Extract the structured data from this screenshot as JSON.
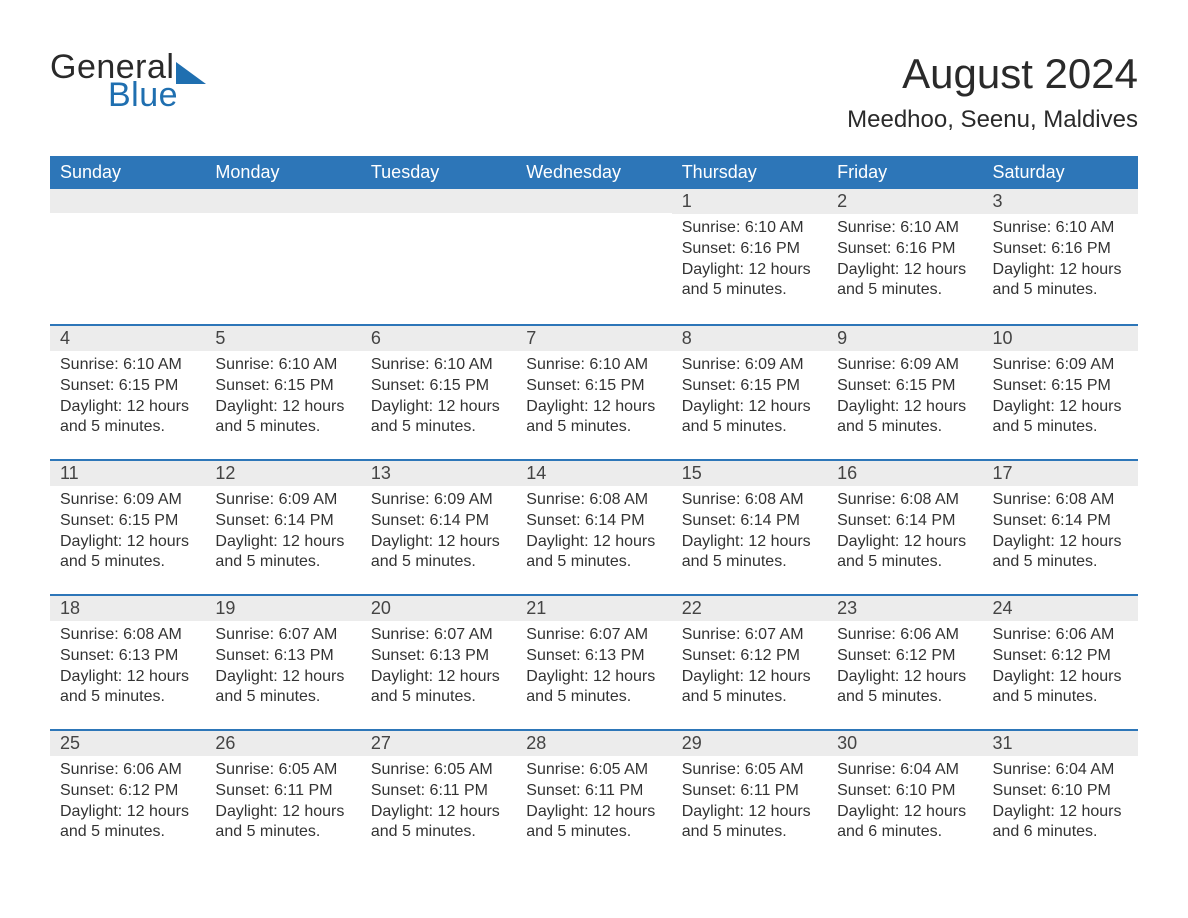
{
  "logo": {
    "part1": "General",
    "part2": "Blue",
    "color1": "#2a2a2a",
    "color2": "#1f6fb0"
  },
  "title": "August 2024",
  "location": "Meedhoo, Seenu, Maldives",
  "colors": {
    "header_bg": "#2d76b8",
    "header_text": "#ffffff",
    "daynum_bg": "#ececec",
    "row_divider": "#2d76b8",
    "body_text": "#333333",
    "page_bg": "#ffffff"
  },
  "weekdays": [
    "Sunday",
    "Monday",
    "Tuesday",
    "Wednesday",
    "Thursday",
    "Friday",
    "Saturday"
  ],
  "weeks": [
    [
      null,
      null,
      null,
      null,
      {
        "n": "1",
        "sunrise": "Sunrise: 6:10 AM",
        "sunset": "Sunset: 6:16 PM",
        "daylight": "Daylight: 12 hours and 5 minutes."
      },
      {
        "n": "2",
        "sunrise": "Sunrise: 6:10 AM",
        "sunset": "Sunset: 6:16 PM",
        "daylight": "Daylight: 12 hours and 5 minutes."
      },
      {
        "n": "3",
        "sunrise": "Sunrise: 6:10 AM",
        "sunset": "Sunset: 6:16 PM",
        "daylight": "Daylight: 12 hours and 5 minutes."
      }
    ],
    [
      {
        "n": "4",
        "sunrise": "Sunrise: 6:10 AM",
        "sunset": "Sunset: 6:15 PM",
        "daylight": "Daylight: 12 hours and 5 minutes."
      },
      {
        "n": "5",
        "sunrise": "Sunrise: 6:10 AM",
        "sunset": "Sunset: 6:15 PM",
        "daylight": "Daylight: 12 hours and 5 minutes."
      },
      {
        "n": "6",
        "sunrise": "Sunrise: 6:10 AM",
        "sunset": "Sunset: 6:15 PM",
        "daylight": "Daylight: 12 hours and 5 minutes."
      },
      {
        "n": "7",
        "sunrise": "Sunrise: 6:10 AM",
        "sunset": "Sunset: 6:15 PM",
        "daylight": "Daylight: 12 hours and 5 minutes."
      },
      {
        "n": "8",
        "sunrise": "Sunrise: 6:09 AM",
        "sunset": "Sunset: 6:15 PM",
        "daylight": "Daylight: 12 hours and 5 minutes."
      },
      {
        "n": "9",
        "sunrise": "Sunrise: 6:09 AM",
        "sunset": "Sunset: 6:15 PM",
        "daylight": "Daylight: 12 hours and 5 minutes."
      },
      {
        "n": "10",
        "sunrise": "Sunrise: 6:09 AM",
        "sunset": "Sunset: 6:15 PM",
        "daylight": "Daylight: 12 hours and 5 minutes."
      }
    ],
    [
      {
        "n": "11",
        "sunrise": "Sunrise: 6:09 AM",
        "sunset": "Sunset: 6:15 PM",
        "daylight": "Daylight: 12 hours and 5 minutes."
      },
      {
        "n": "12",
        "sunrise": "Sunrise: 6:09 AM",
        "sunset": "Sunset: 6:14 PM",
        "daylight": "Daylight: 12 hours and 5 minutes."
      },
      {
        "n": "13",
        "sunrise": "Sunrise: 6:09 AM",
        "sunset": "Sunset: 6:14 PM",
        "daylight": "Daylight: 12 hours and 5 minutes."
      },
      {
        "n": "14",
        "sunrise": "Sunrise: 6:08 AM",
        "sunset": "Sunset: 6:14 PM",
        "daylight": "Daylight: 12 hours and 5 minutes."
      },
      {
        "n": "15",
        "sunrise": "Sunrise: 6:08 AM",
        "sunset": "Sunset: 6:14 PM",
        "daylight": "Daylight: 12 hours and 5 minutes."
      },
      {
        "n": "16",
        "sunrise": "Sunrise: 6:08 AM",
        "sunset": "Sunset: 6:14 PM",
        "daylight": "Daylight: 12 hours and 5 minutes."
      },
      {
        "n": "17",
        "sunrise": "Sunrise: 6:08 AM",
        "sunset": "Sunset: 6:14 PM",
        "daylight": "Daylight: 12 hours and 5 minutes."
      }
    ],
    [
      {
        "n": "18",
        "sunrise": "Sunrise: 6:08 AM",
        "sunset": "Sunset: 6:13 PM",
        "daylight": "Daylight: 12 hours and 5 minutes."
      },
      {
        "n": "19",
        "sunrise": "Sunrise: 6:07 AM",
        "sunset": "Sunset: 6:13 PM",
        "daylight": "Daylight: 12 hours and 5 minutes."
      },
      {
        "n": "20",
        "sunrise": "Sunrise: 6:07 AM",
        "sunset": "Sunset: 6:13 PM",
        "daylight": "Daylight: 12 hours and 5 minutes."
      },
      {
        "n": "21",
        "sunrise": "Sunrise: 6:07 AM",
        "sunset": "Sunset: 6:13 PM",
        "daylight": "Daylight: 12 hours and 5 minutes."
      },
      {
        "n": "22",
        "sunrise": "Sunrise: 6:07 AM",
        "sunset": "Sunset: 6:12 PM",
        "daylight": "Daylight: 12 hours and 5 minutes."
      },
      {
        "n": "23",
        "sunrise": "Sunrise: 6:06 AM",
        "sunset": "Sunset: 6:12 PM",
        "daylight": "Daylight: 12 hours and 5 minutes."
      },
      {
        "n": "24",
        "sunrise": "Sunrise: 6:06 AM",
        "sunset": "Sunset: 6:12 PM",
        "daylight": "Daylight: 12 hours and 5 minutes."
      }
    ],
    [
      {
        "n": "25",
        "sunrise": "Sunrise: 6:06 AM",
        "sunset": "Sunset: 6:12 PM",
        "daylight": "Daylight: 12 hours and 5 minutes."
      },
      {
        "n": "26",
        "sunrise": "Sunrise: 6:05 AM",
        "sunset": "Sunset: 6:11 PM",
        "daylight": "Daylight: 12 hours and 5 minutes."
      },
      {
        "n": "27",
        "sunrise": "Sunrise: 6:05 AM",
        "sunset": "Sunset: 6:11 PM",
        "daylight": "Daylight: 12 hours and 5 minutes."
      },
      {
        "n": "28",
        "sunrise": "Sunrise: 6:05 AM",
        "sunset": "Sunset: 6:11 PM",
        "daylight": "Daylight: 12 hours and 5 minutes."
      },
      {
        "n": "29",
        "sunrise": "Sunrise: 6:05 AM",
        "sunset": "Sunset: 6:11 PM",
        "daylight": "Daylight: 12 hours and 5 minutes."
      },
      {
        "n": "30",
        "sunrise": "Sunrise: 6:04 AM",
        "sunset": "Sunset: 6:10 PM",
        "daylight": "Daylight: 12 hours and 6 minutes."
      },
      {
        "n": "31",
        "sunrise": "Sunrise: 6:04 AM",
        "sunset": "Sunset: 6:10 PM",
        "daylight": "Daylight: 12 hours and 6 minutes."
      }
    ]
  ]
}
